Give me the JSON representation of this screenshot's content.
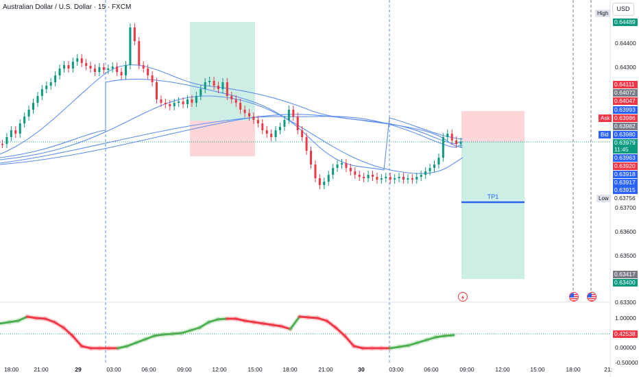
{
  "header": {
    "symbol_title": "Australian Dollar / U.S. Dollar · 15 · FXCM",
    "currency_button": "USD"
  },
  "price_axis": {
    "ticks": [
      "0.64400",
      "0.64300",
      "0.63700",
      "0.63600",
      "0.63500",
      "0.63300"
    ],
    "high_tag": "High",
    "high_value": "0.64489",
    "low_tag": "Low",
    "low_value": "0.63756",
    "ask_tag": "Ask",
    "bid_tag": "Bid",
    "levels": [
      {
        "value": "0.64111",
        "color": "#f23645"
      },
      {
        "value": "0.64072",
        "color": "#787b86"
      },
      {
        "value": "0.64047",
        "color": "#f23645"
      },
      {
        "value": "0.63993",
        "color": "#2962ff"
      },
      {
        "value": "0.63986",
        "color": "#f23645"
      },
      {
        "value": "0.63982",
        "color": "#787b86"
      },
      {
        "value": "0.63980",
        "color": "#2962ff"
      },
      {
        "value": "0.63979",
        "color": "#089981"
      },
      {
        "value": "11:45",
        "color": "#089981"
      },
      {
        "value": "0.63963",
        "color": "#2962ff"
      },
      {
        "value": "0.63920",
        "color": "#f23645"
      },
      {
        "value": "0.63918",
        "color": "#2962ff"
      },
      {
        "value": "0.63917",
        "color": "#2962ff"
      },
      {
        "value": "0.63915",
        "color": "#2962ff"
      },
      {
        "value": "0.63417",
        "color": "#787b86"
      },
      {
        "value": "0.63400",
        "color": "#089981"
      }
    ]
  },
  "oscillator_axis": {
    "ticks": [
      "1.00000",
      "0.00000",
      "-0.50000"
    ],
    "current_value": "0.42538",
    "current_color": "#f23645"
  },
  "time_axis": {
    "labels": [
      {
        "text": "18:00",
        "bold": false
      },
      {
        "text": "21:00",
        "bold": false
      },
      {
        "text": "29",
        "bold": true
      },
      {
        "text": "03:00",
        "bold": false
      },
      {
        "text": "06:00",
        "bold": false
      },
      {
        "text": "09:00",
        "bold": false
      },
      {
        "text": "12:00",
        "bold": false
      },
      {
        "text": "15:00",
        "bold": false
      },
      {
        "text": "18:00",
        "bold": false
      },
      {
        "text": "21:00",
        "bold": false
      },
      {
        "text": "30",
        "bold": true
      },
      {
        "text": "03:00",
        "bold": false
      },
      {
        "text": "06:00",
        "bold": false
      },
      {
        "text": "09:00",
        "bold": false
      },
      {
        "text": "12:00",
        "bold": false
      },
      {
        "text": "15:00",
        "bold": false
      },
      {
        "text": "18:00",
        "bold": false
      },
      {
        "text": "21:"
      }
    ]
  },
  "drawings": {
    "position_label": "TP1"
  },
  "colors": {
    "bull": "#089981",
    "bear": "#f23645",
    "ma": "#5b8def",
    "profit_zone": "#cdeee4",
    "loss_zone": "#fcd6d9",
    "tp_line": "#2962ff"
  },
  "icons": [
    "lightning-event-icon",
    "us-flag-event-icon",
    "us-flag-event-icon"
  ]
}
